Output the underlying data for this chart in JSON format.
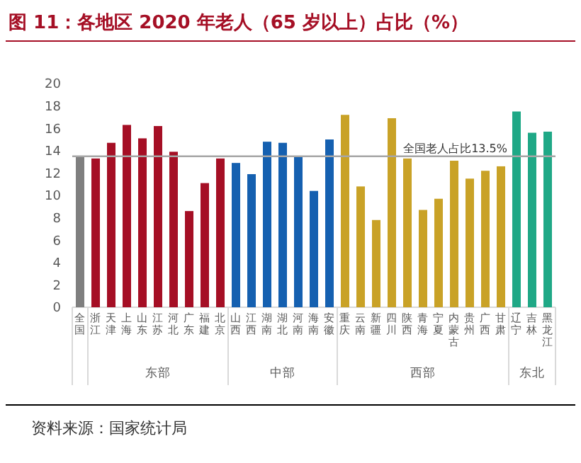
{
  "chart_data": {
    "type": "bar",
    "title": "图 11：各地区 2020 年老人（65 岁以上）占比（%）",
    "categories": [
      "全国",
      "浙江",
      "天津",
      "上海",
      "山东",
      "江苏",
      "河北",
      "广东",
      "福建",
      "北京",
      "山西",
      "江西",
      "湖南",
      "湖北",
      "河南",
      "海南",
      "安徽",
      "重庆",
      "云南",
      "新疆",
      "四川",
      "陕西",
      "青海",
      "宁夏",
      "内蒙古",
      "贵州",
      "广西",
      "甘肃",
      "辽宁",
      "吉林",
      "黑龙江"
    ],
    "values": [
      13.5,
      13.3,
      14.7,
      16.3,
      15.1,
      16.2,
      13.9,
      8.6,
      11.1,
      13.3,
      12.9,
      11.9,
      14.8,
      14.7,
      13.5,
      10.4,
      15.0,
      17.2,
      10.8,
      7.8,
      16.9,
      13.3,
      8.7,
      9.7,
      13.1,
      11.5,
      12.2,
      12.6,
      17.5,
      15.6,
      15.7
    ],
    "colors": [
      "#7f7f7f",
      "#a50f25",
      "#a50f25",
      "#a50f25",
      "#a50f25",
      "#a50f25",
      "#a50f25",
      "#a50f25",
      "#a50f25",
      "#a50f25",
      "#1560b0",
      "#1560b0",
      "#1560b0",
      "#1560b0",
      "#1560b0",
      "#1560b0",
      "#1560b0",
      "#c9a227",
      "#c9a227",
      "#c9a227",
      "#c9a227",
      "#c9a227",
      "#c9a227",
      "#c9a227",
      "#c9a227",
      "#c9a227",
      "#c9a227",
      "#c9a227",
      "#1fa886",
      "#1fa886",
      "#1fa886"
    ],
    "ylim": [
      0,
      20
    ],
    "yticks": [
      0,
      2,
      4,
      6,
      8,
      10,
      12,
      14,
      16,
      18,
      20
    ],
    "grid": false,
    "ref_lines": [
      {
        "axis": "y",
        "value": 13.5,
        "label": "全国老人占比13.5%",
        "color": "#a6a6a6"
      }
    ],
    "annotations": [
      "东部",
      "中部",
      "西部",
      "东北",
      "资料来源：国家统计局"
    ]
  }
}
